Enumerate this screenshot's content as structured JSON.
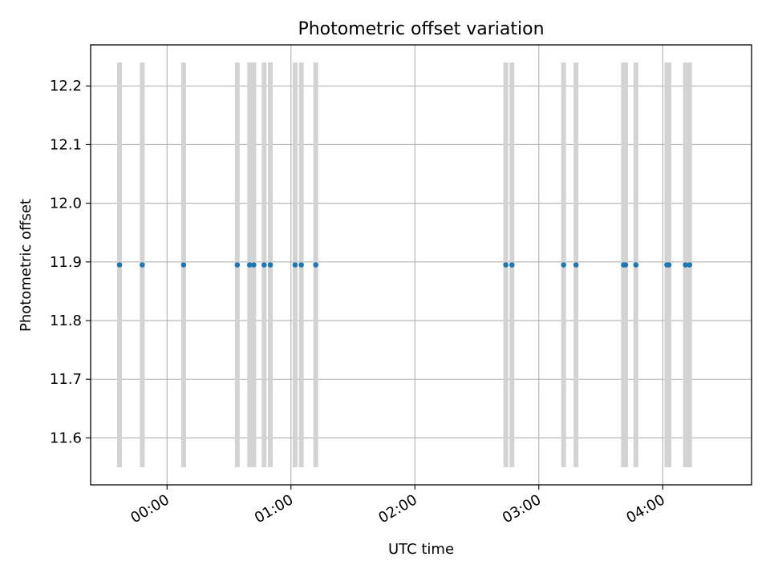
{
  "chart_data": {
    "type": "scatter",
    "title": "Photometric offset variation",
    "xlabel": "UTC time",
    "ylabel": "Photometric offset",
    "x_tick_labels": [
      "00:00",
      "01:00",
      "02:00",
      "03:00",
      "04:00"
    ],
    "y_tick_labels": [
      "11.6",
      "11.7",
      "11.8",
      "11.9",
      "12.0",
      "12.1",
      "12.2"
    ],
    "xlim": [
      "23:23",
      "04:43"
    ],
    "ylim": [
      11.52,
      12.27
    ],
    "grid": true,
    "legend": null,
    "series": [
      {
        "points": [
          {
            "x": "23:37",
            "y": 11.895
          },
          {
            "x": "23:48",
            "y": 11.895
          },
          {
            "x": "00:08",
            "y": 11.895
          },
          {
            "x": "00:34",
            "y": 11.895
          },
          {
            "x": "00:40",
            "y": 11.895
          },
          {
            "x": "00:42",
            "y": 11.895
          },
          {
            "x": "00:47",
            "y": 11.895
          },
          {
            "x": "00:50",
            "y": 11.895
          },
          {
            "x": "01:02",
            "y": 11.895
          },
          {
            "x": "01:05",
            "y": 11.895
          },
          {
            "x": "01:12",
            "y": 11.895
          },
          {
            "x": "02:44",
            "y": 11.895
          },
          {
            "x": "02:47",
            "y": 11.895
          },
          {
            "x": "03:12",
            "y": 11.895
          },
          {
            "x": "03:18",
            "y": 11.895
          },
          {
            "x": "03:41",
            "y": 11.895
          },
          {
            "x": "03:42",
            "y": 11.895
          },
          {
            "x": "03:47",
            "y": 11.895
          },
          {
            "x": "04:02",
            "y": 11.895
          },
          {
            "x": "04:03",
            "y": 11.895
          },
          {
            "x": "04:11",
            "y": 11.895
          },
          {
            "x": "04:13",
            "y": 11.895
          }
        ]
      }
    ],
    "shaded_spans": {
      "y_range": [
        11.55,
        12.24
      ],
      "x": [
        "23:37",
        "23:48",
        "00:08",
        "00:34",
        "00:40",
        "00:42",
        "00:47",
        "00:50",
        "01:02",
        "01:05",
        "01:12",
        "02:44",
        "02:47",
        "03:12",
        "03:18",
        "03:41",
        "03:42",
        "03:47",
        "04:02",
        "04:03",
        "04:11",
        "04:13"
      ]
    },
    "colors": {
      "points": "#1f77b4",
      "spans": "#d3d3d3",
      "grid": "#b0b0b0",
      "axes": "#000000"
    }
  }
}
